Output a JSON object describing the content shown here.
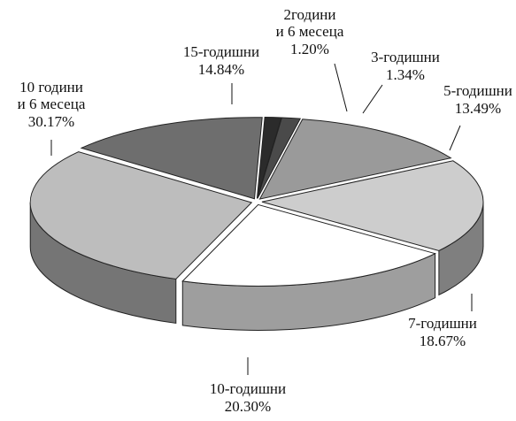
{
  "chart_data": {
    "type": "pie",
    "categories": [
      [
        "2години",
        "и 6 месеца"
      ],
      [
        "3-годишни"
      ],
      [
        "5-годишни"
      ],
      [
        "7-годишни"
      ],
      [
        "10-годишни"
      ],
      [
        "10 години",
        "и 6 месеца"
      ],
      [
        "15-годишни"
      ]
    ],
    "values": [
      1.2,
      1.34,
      13.49,
      18.67,
      20.3,
      30.17,
      14.84
    ],
    "value_labels": [
      "1.20%",
      "1.34%",
      "13.49%",
      "18.67%",
      "20.30%",
      "30.17%",
      "14.84%"
    ],
    "colors": [
      "#2b2b2b",
      "#4a4a4a",
      "#9a9a9a",
      "#cdcdcd",
      "#ffffff",
      "#bdbdbd",
      "#6e6e6e"
    ]
  }
}
